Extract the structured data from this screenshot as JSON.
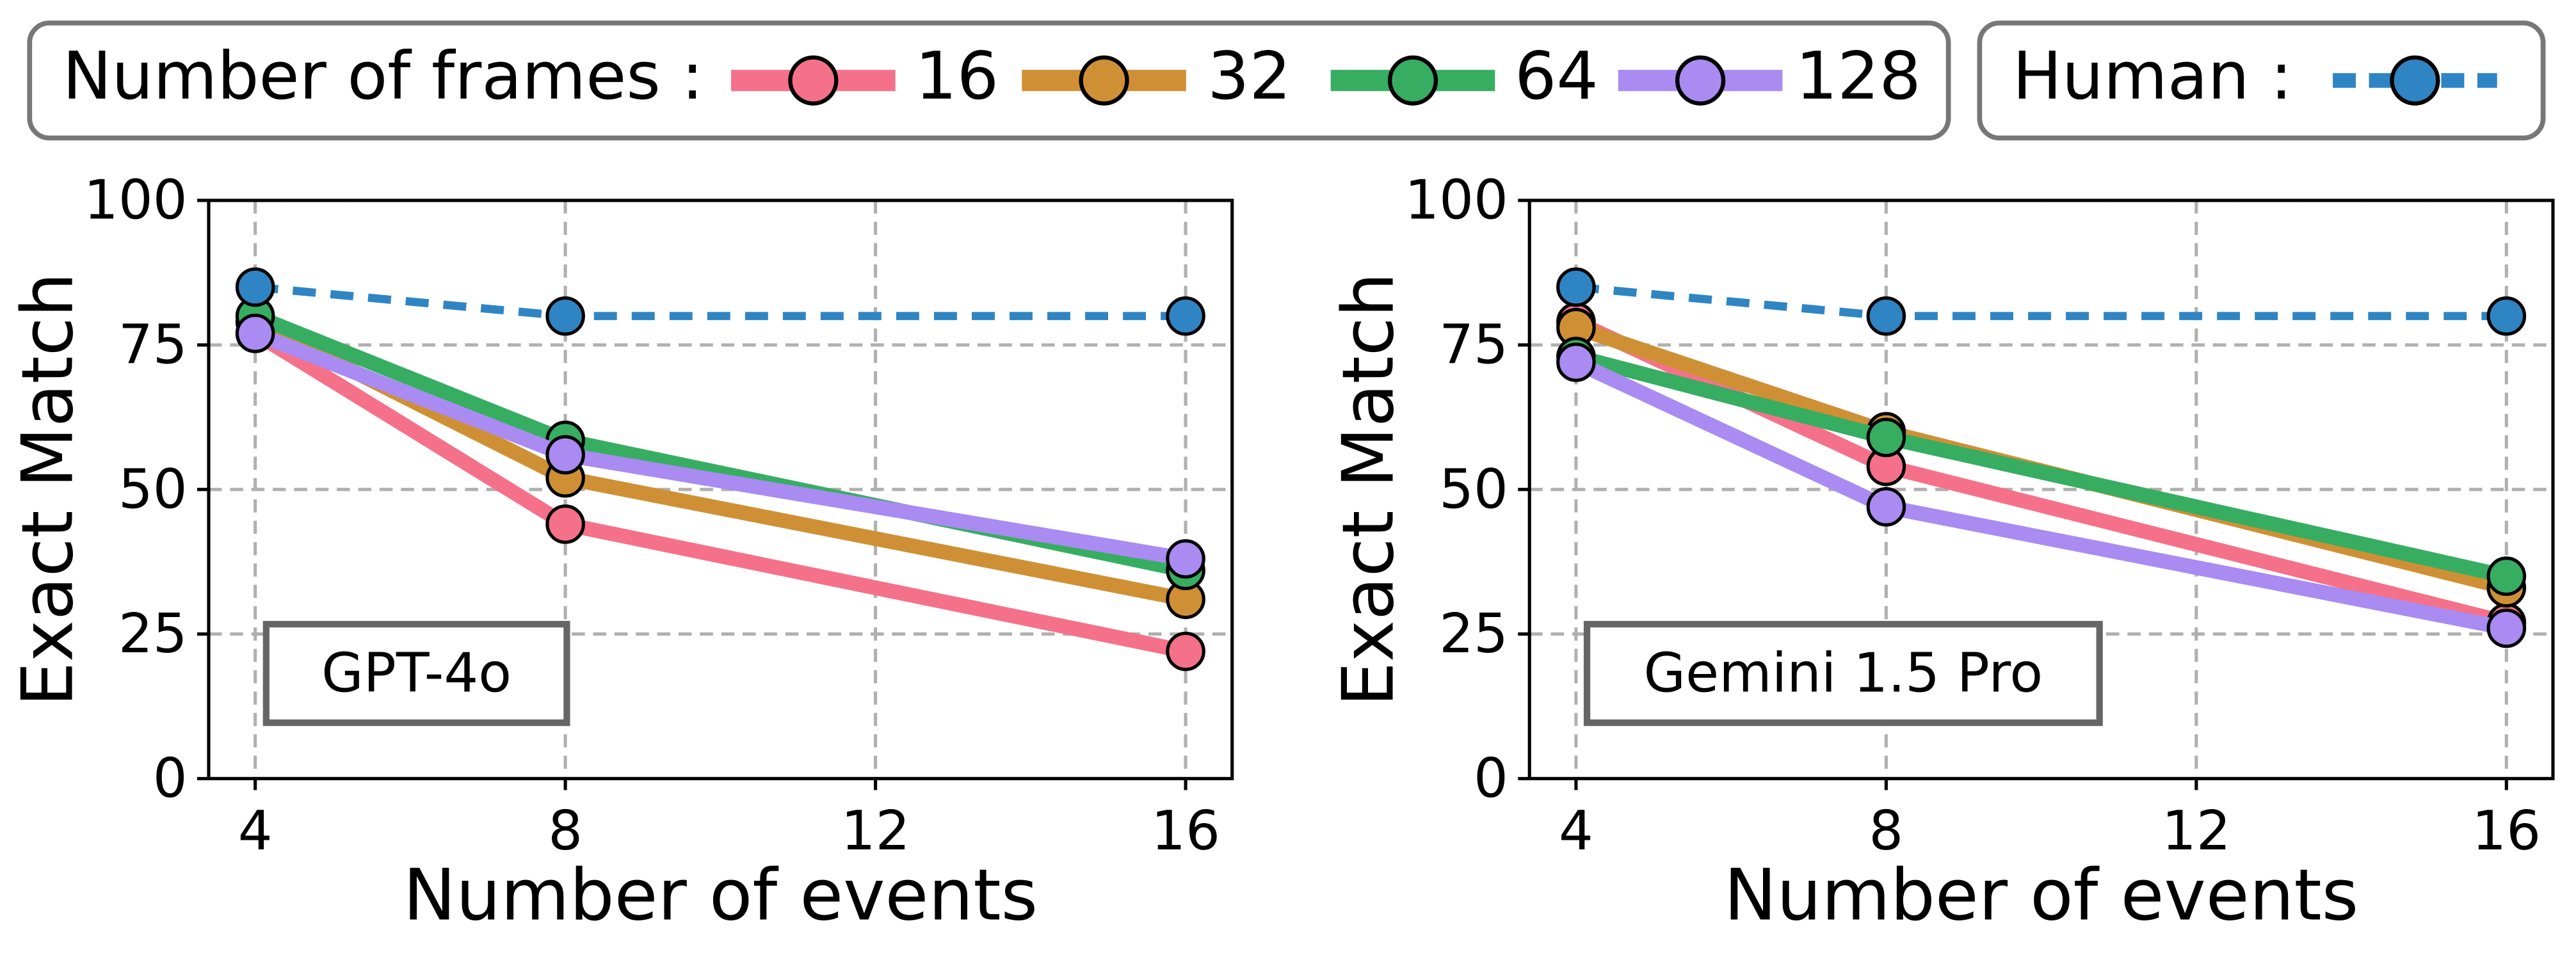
{
  "chart_data": [
    {
      "type": "line",
      "title": "GPT-4o",
      "xlabel": "Number of events",
      "ylabel": "Exact Match",
      "legend_title": "Number of frames :",
      "x": [
        4,
        8,
        16
      ],
      "xlim": [
        3.4,
        16.6
      ],
      "xticks": [
        4,
        8,
        12,
        16
      ],
      "ylim": [
        0,
        100
      ],
      "yticks": [
        0,
        25,
        50,
        75,
        100
      ],
      "grid": true,
      "series": [
        {
          "name": "16",
          "color": "#f57189",
          "values": [
            77,
            44,
            22
          ]
        },
        {
          "name": "32",
          "color": "#cf9035",
          "values": [
            79,
            52,
            31
          ]
        },
        {
          "name": "64",
          "color": "#37ad62",
          "values": [
            80,
            58.5,
            36
          ]
        },
        {
          "name": "128",
          "color": "#a98bf2",
          "values": [
            77,
            56,
            38
          ]
        },
        {
          "name": "Human :",
          "color": "#2f85c3",
          "dashed": true,
          "values": [
            85,
            80,
            80
          ]
        }
      ]
    },
    {
      "type": "line",
      "title": "Gemini 1.5 Pro",
      "xlabel": "Number of events",
      "ylabel": "Exact Match",
      "x": [
        4,
        8,
        16
      ],
      "xlim": [
        3.4,
        16.6
      ],
      "xticks": [
        4,
        8,
        12,
        16
      ],
      "ylim": [
        0,
        100
      ],
      "yticks": [
        0,
        25,
        50,
        75,
        100
      ],
      "grid": true,
      "series": [
        {
          "name": "16",
          "color": "#f57189",
          "values": [
            79,
            54,
            27
          ]
        },
        {
          "name": "32",
          "color": "#cf9035",
          "values": [
            78,
            60,
            33
          ]
        },
        {
          "name": "64",
          "color": "#37ad62",
          "values": [
            73,
            59,
            35
          ]
        },
        {
          "name": "128",
          "color": "#a98bf2",
          "values": [
            72,
            47,
            26
          ]
        },
        {
          "name": "Human :",
          "color": "#2f85c3",
          "dashed": true,
          "values": [
            85,
            80,
            80
          ]
        }
      ]
    }
  ]
}
